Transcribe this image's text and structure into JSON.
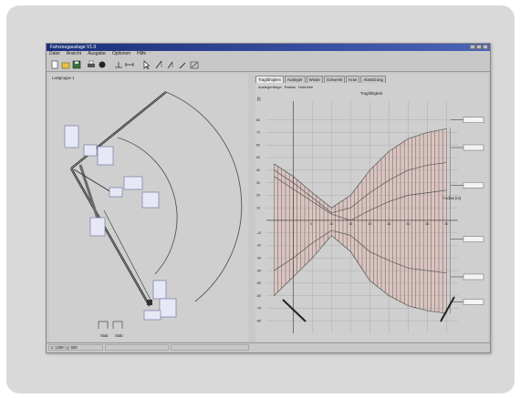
{
  "window": {
    "title": "Fahrzeugauslage V1.0"
  },
  "menu": [
    "Datei",
    "Ansicht",
    "Ausgabe",
    "Optionen",
    "Hilfe"
  ],
  "toolbar": {
    "icons": [
      "new-file-icon",
      "open-folder-icon",
      "save-icon",
      "print-icon",
      "record-icon",
      "scale-icon",
      "measure-icon",
      "pointer-icon",
      "crane-figure-1-icon",
      "crane-figure-2-icon",
      "crane-figure-3-icon",
      "crane-figure-4-icon"
    ]
  },
  "left_panel": {
    "label": "Lastgruppe 1",
    "legend": [
      {
        "label": "Stab"
      },
      {
        "label": "Stab"
      }
    ]
  },
  "tabs": [
    {
      "label": "Tragfähigkeit",
      "active": true
    },
    {
      "label": "Ausleger",
      "active": false
    },
    {
      "label": "Winde",
      "active": false
    },
    {
      "label": "Schwenk",
      "active": false
    },
    {
      "label": "Kran",
      "active": false
    },
    {
      "label": "Abstützung",
      "active": false
    }
  ],
  "subtabs": [
    "Auslegerlänge",
    "Radius",
    "Hubhöhe"
  ],
  "chart": {
    "title": "Tragfähigkeit",
    "x_axis_label": "Radius [m]",
    "y_axis_top_label": "[t]"
  },
  "chart_data": {
    "type": "line",
    "title": "Tragfähigkeit",
    "xlabel": "Radius [m]",
    "ylabel": "[t]",
    "x_ticks": [
      5,
      10,
      15,
      20,
      25,
      30,
      35,
      40
    ],
    "y_ticks_upper": [
      80,
      70,
      60,
      50,
      40,
      30,
      20,
      10
    ],
    "y_ticks_lower": [
      -10,
      -20,
      -30,
      -40,
      -50,
      -60,
      -70,
      -80
    ],
    "xlim": [
      -7,
      43
    ],
    "ylim": [
      -90,
      95
    ],
    "grid": true,
    "series": [
      {
        "x": [
          -5,
          0,
          5,
          10,
          15,
          20,
          25,
          30,
          35,
          40
        ],
        "y": [
          45,
          35,
          22,
          10,
          20,
          40,
          55,
          65,
          70,
          73
        ]
      },
      {
        "x": [
          -5,
          0,
          5,
          10,
          15,
          20,
          25,
          30,
          35,
          40
        ],
        "y": [
          40,
          30,
          18,
          6,
          10,
          22,
          32,
          40,
          44,
          46
        ]
      },
      {
        "x": [
          -5,
          0,
          5,
          10,
          15,
          20,
          25,
          30,
          35,
          40
        ],
        "y": [
          35,
          25,
          15,
          5,
          0,
          8,
          15,
          20,
          22,
          24
        ]
      },
      {
        "x": [
          -5,
          0,
          5,
          10,
          15,
          20,
          25,
          30,
          35,
          40
        ],
        "y": [
          -40,
          -30,
          -18,
          -8,
          -12,
          -25,
          -32,
          -38,
          -40,
          -42
        ]
      },
      {
        "x": [
          -5,
          0,
          5,
          10,
          15,
          20,
          25,
          30,
          35,
          40
        ],
        "y": [
          -60,
          -45,
          -30,
          -12,
          -25,
          -48,
          -60,
          -68,
          -72,
          -74
        ]
      }
    ],
    "right_markers": [
      {
        "y": 80
      },
      {
        "y": 58
      },
      {
        "y": 28
      },
      {
        "y": -15
      },
      {
        "y": -45
      },
      {
        "y": -65
      }
    ],
    "band_color": "#1a1a1a",
    "shade_color": "#e7b8b0",
    "line_color": "#555555"
  },
  "status": {
    "left": "x: 1280 / y: 600",
    "mid": "",
    "right": ""
  }
}
